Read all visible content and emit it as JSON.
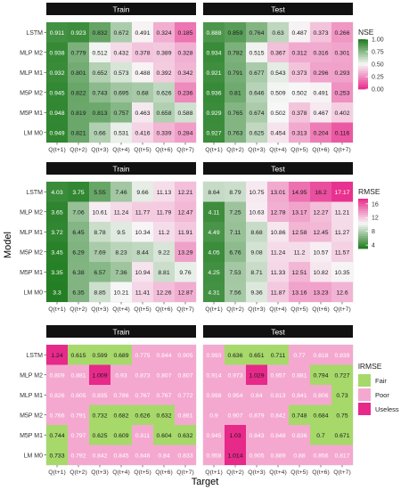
{
  "figure": {
    "ylabel": "Model",
    "xlabel": "Target"
  },
  "chart_data": [
    {
      "type": "heatmap",
      "metric": "NSE",
      "scale": "continuous",
      "legend_title": "NSE",
      "legend_ticks": [
        1.0,
        0.75,
        0.5,
        0.25,
        0.0
      ],
      "legend_tick_labels": [
        "1.00",
        "0.75",
        "0.50",
        "0.25",
        "0.00"
      ],
      "range": [
        0,
        1
      ],
      "colors": {
        "low": "#e7298a",
        "mid": "#f7f7f7",
        "high": "#1b7a1b"
      },
      "x_categories": [
        "Q(t+1)",
        "Q(t+2)",
        "Q(t+3)",
        "Q(t+4)",
        "Q(t+5)",
        "Q(t+6)",
        "Q(t+7)"
      ],
      "y_categories": [
        "LSTM",
        "MLP M2",
        "MLP M1",
        "M5P M2",
        "M5P M1",
        "LM M0"
      ],
      "facets": [
        {
          "title": "Train",
          "values": [
            [
              "0.911",
              "0.923",
              "0.832",
              "0.672",
              "0.491",
              "0.324",
              "0.185"
            ],
            [
              "0.938",
              "0.779",
              "0.512",
              "0.432",
              "0.378",
              "0.389",
              "0.328"
            ],
            [
              "0.932",
              "0.801",
              "0.652",
              "0.573",
              "0.488",
              "0.392",
              "0.342"
            ],
            [
              "0.945",
              "0.822",
              "0.743",
              "0.695",
              "0.68",
              "0.626",
              "0.236"
            ],
            [
              "0.948",
              "0.819",
              "0.813",
              "0.757",
              "0.463",
              "0.658",
              "0.588"
            ],
            [
              "0.949",
              "0.821",
              "0.66",
              "0.531",
              "0.416",
              "0.339",
              "0.284"
            ]
          ]
        },
        {
          "title": "Test",
          "values": [
            [
              "0.888",
              "0.859",
              "0.764",
              "0.63",
              "0.487",
              "0.373",
              "0.266"
            ],
            [
              "0.934",
              "0.782",
              "0.515",
              "0.367",
              "0.312",
              "0.316",
              "0.301"
            ],
            [
              "0.921",
              "0.791",
              "0.677",
              "0.543",
              "0.373",
              "0.296",
              "0.293"
            ],
            [
              "0.936",
              "0.81",
              "0.646",
              "0.509",
              "0.502",
              "0.491",
              "0.253"
            ],
            [
              "0.929",
              "0.765",
              "0.674",
              "0.502",
              "0.378",
              "0.467",
              "0.402"
            ],
            [
              "0.927",
              "0.763",
              "0.625",
              "0.454",
              "0.313",
              "0.204",
              "0.116"
            ]
          ]
        }
      ]
    },
    {
      "type": "heatmap",
      "metric": "RMSE",
      "scale": "continuous",
      "legend_title": "RMSE",
      "legend_ticks": [
        16,
        12,
        8,
        4
      ],
      "legend_tick_labels": [
        "16",
        "12",
        "8",
        "4"
      ],
      "range": [
        3,
        17.5
      ],
      "colors": {
        "low": "#1b7a1b",
        "mid": "#f7f7f7",
        "high": "#e7298a"
      },
      "x_categories": [
        "Q(t+1)",
        "Q(t+2)",
        "Q(t+3)",
        "Q(t+4)",
        "Q(t+5)",
        "Q(t+6)",
        "Q(t+7)"
      ],
      "y_categories": [
        "LSTM",
        "MLP M2",
        "MLP M1",
        "M5P M2",
        "M5P M1",
        "LM M0"
      ],
      "facets": [
        {
          "title": "Train",
          "values": [
            [
              "4.03",
              "3.75",
              "5.55",
              "7.46",
              "9.66",
              "11.13",
              "12.21"
            ],
            [
              "3.65",
              "7.06",
              "10.61",
              "11.24",
              "11.77",
              "11.79",
              "12.47"
            ],
            [
              "3.72",
              "6.45",
              "8.78",
              "9.5",
              "10.34",
              "11.2",
              "11.91"
            ],
            [
              "3.45",
              "6.29",
              "7.69",
              "8.23",
              "8.44",
              "9.22",
              "13.29"
            ],
            [
              "3.35",
              "6.38",
              "6.57",
              "7.36",
              "10.94",
              "8.81",
              "9.76"
            ],
            [
              "3.3",
              "6.35",
              "8.85",
              "10.21",
              "11.41",
              "12.26",
              "12.87"
            ]
          ]
        },
        {
          "title": "Test",
          "values": [
            [
              "8.64",
              "8.79",
              "10.75",
              "13.01",
              "14.95",
              "16.2",
              "17.17"
            ],
            [
              "4.11",
              "7.25",
              "10.63",
              "12.78",
              "13.17",
              "12.27",
              "11.21"
            ],
            [
              "4.49",
              "7.11",
              "8.68",
              "10.86",
              "12.58",
              "12.45",
              "11.27"
            ],
            [
              "4.05",
              "6.76",
              "9.08",
              "11.24",
              "11.2",
              "10.57",
              "11.57"
            ],
            [
              "4.25",
              "7.53",
              "8.71",
              "11.33",
              "12.51",
              "10.82",
              "10.35"
            ],
            [
              "4.31",
              "7.56",
              "9.36",
              "11.87",
              "13.16",
              "13.23",
              "12.6"
            ]
          ]
        }
      ]
    },
    {
      "type": "heatmap",
      "metric": "lRMSE",
      "scale": "categorical",
      "legend_title": "lRMSE",
      "classes": [
        {
          "label": "Fair",
          "color": "#a6d96a"
        },
        {
          "label": "Poor",
          "color": "#f4a8d0"
        },
        {
          "label": "Useless",
          "color": "#e7298a"
        }
      ],
      "x_categories": [
        "Q(t+1)",
        "Q(t+2)",
        "Q(t+3)",
        "Q(t+4)",
        "Q(t+5)",
        "Q(t+6)",
        "Q(t+7)"
      ],
      "y_categories": [
        "LSTM",
        "MLP M2",
        "MLP M1",
        "M5P M2",
        "M5P M1",
        "LM M0"
      ],
      "facets": [
        {
          "title": "Train",
          "values": [
            [
              "1.24",
              "0.615",
              "0.599",
              "0.689",
              "0.775",
              "0.844",
              "0.905"
            ],
            [
              "0.809",
              "0.881",
              "1.009",
              "0.93",
              "0.873",
              "0.807",
              "0.807"
            ],
            [
              "0.826",
              "0.805",
              "0.835",
              "0.786",
              "0.767",
              "0.767",
              "0.772"
            ],
            [
              "0.766",
              "0.791",
              "0.732",
              "0.682",
              "0.626",
              "0.632",
              "0.861"
            ],
            [
              "0.744",
              "0.797",
              "0.625",
              "0.609",
              "0.811",
              "0.604",
              "0.632"
            ],
            [
              "0.733",
              "0.792",
              "0.842",
              "0.845",
              "0.846",
              "0.84",
              "0.833"
            ]
          ],
          "classes": [
            [
              "Useless",
              "Fair",
              "Fair",
              "Fair",
              "Poor",
              "Poor",
              "Poor"
            ],
            [
              "Poor",
              "Poor",
              "Useless",
              "Poor",
              "Poor",
              "Poor",
              "Poor"
            ],
            [
              "Poor",
              "Poor",
              "Poor",
              "Poor",
              "Poor",
              "Poor",
              "Poor"
            ],
            [
              "Poor",
              "Poor",
              "Fair",
              "Fair",
              "Fair",
              "Fair",
              "Poor"
            ],
            [
              "Fair",
              "Poor",
              "Fair",
              "Fair",
              "Poor",
              "Fair",
              "Fair"
            ],
            [
              "Fair",
              "Poor",
              "Poor",
              "Poor",
              "Poor",
              "Poor",
              "Poor"
            ]
          ]
        },
        {
          "title": "Test",
          "values": [
            [
              "0.993",
              "0.636",
              "0.651",
              "0.711",
              "0.77",
              "0.818",
              "0.839"
            ],
            [
              "0.914",
              "0.973",
              "1.029",
              "0.957",
              "0.881",
              "0.794",
              "0.727"
            ],
            [
              "0.998",
              "0.954",
              "0.84",
              "0.813",
              "0.841",
              "0.806",
              "0.73"
            ],
            [
              "0.9",
              "0.907",
              "0.879",
              "0.842",
              "0.748",
              "0.684",
              "0.75"
            ],
            [
              "0.945",
              "1.03",
              "0.843",
              "0.848",
              "0.836",
              "0.7",
              "0.671"
            ],
            [
              "0.958",
              "1.014",
              "0.905",
              "0.889",
              "0.88",
              "0.856",
              "0.817"
            ]
          ],
          "classes": [
            [
              "Poor",
              "Fair",
              "Fair",
              "Fair",
              "Poor",
              "Poor",
              "Poor"
            ],
            [
              "Poor",
              "Poor",
              "Useless",
              "Poor",
              "Poor",
              "Fair",
              "Fair"
            ],
            [
              "Poor",
              "Poor",
              "Poor",
              "Poor",
              "Poor",
              "Poor",
              "Fair"
            ],
            [
              "Poor",
              "Poor",
              "Poor",
              "Poor",
              "Fair",
              "Fair",
              "Fair"
            ],
            [
              "Poor",
              "Useless",
              "Poor",
              "Poor",
              "Poor",
              "Fair",
              "Fair"
            ],
            [
              "Poor",
              "Useless",
              "Poor",
              "Poor",
              "Poor",
              "Poor",
              "Poor"
            ]
          ]
        }
      ]
    }
  ]
}
